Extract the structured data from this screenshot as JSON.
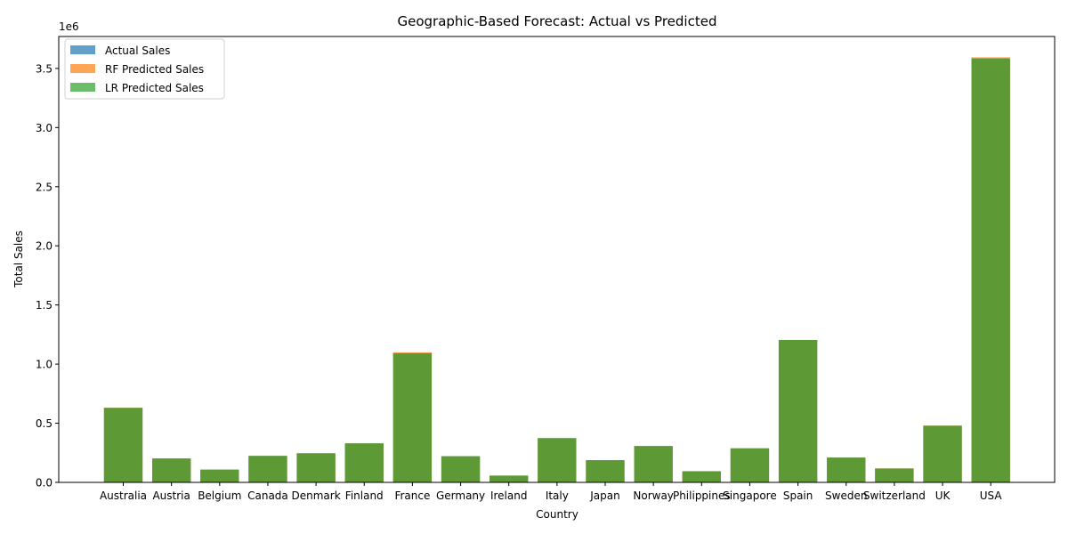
{
  "chart_data": {
    "type": "bar",
    "title": "Geographic-Based Forecast: Actual vs Predicted",
    "xlabel": "Country",
    "ylabel": "Total Sales",
    "y_offset_label": "1e6",
    "ylim": [
      0,
      3770000
    ],
    "yticks": [
      0,
      500000,
      1000000,
      1500000,
      2000000,
      2500000,
      3000000,
      3500000
    ],
    "ytick_labels": [
      "0.0",
      "0.5",
      "1.0",
      "1.5",
      "2.0",
      "2.5",
      "3.0",
      "3.5"
    ],
    "grid": false,
    "legend_position": "top-left",
    "categories": [
      "Australia",
      "Austria",
      "Belgium",
      "Canada",
      "Denmark",
      "Finland",
      "France",
      "Germany",
      "Ireland",
      "Italy",
      "Japan",
      "Norway",
      "Philippines",
      "Singapore",
      "Spain",
      "Sweden",
      "Switzerland",
      "UK",
      "USA"
    ],
    "series": [
      {
        "name": "Actual Sales",
        "color": "#1f77b4",
        "values": [
          630000,
          202000,
          108000,
          224000,
          246000,
          330000,
          1092000,
          221000,
          57000,
          374000,
          188000,
          307000,
          94000,
          288000,
          1204000,
          210000,
          117000,
          479000,
          3584000
        ]
      },
      {
        "name": "RF Predicted Sales",
        "color": "#ff7f0e",
        "values": [
          631000,
          201000,
          107000,
          223000,
          245000,
          329000,
          1100000,
          220000,
          57000,
          373000,
          187000,
          306000,
          95000,
          287000,
          1203000,
          209000,
          118000,
          480000,
          3594000
        ]
      },
      {
        "name": "LR Predicted Sales",
        "color": "#2ca02c",
        "values": [
          630000,
          202000,
          108000,
          224000,
          246000,
          330000,
          1092000,
          221000,
          57000,
          374000,
          188000,
          307000,
          94000,
          288000,
          1204000,
          210000,
          117000,
          479000,
          3584000
        ]
      }
    ]
  }
}
